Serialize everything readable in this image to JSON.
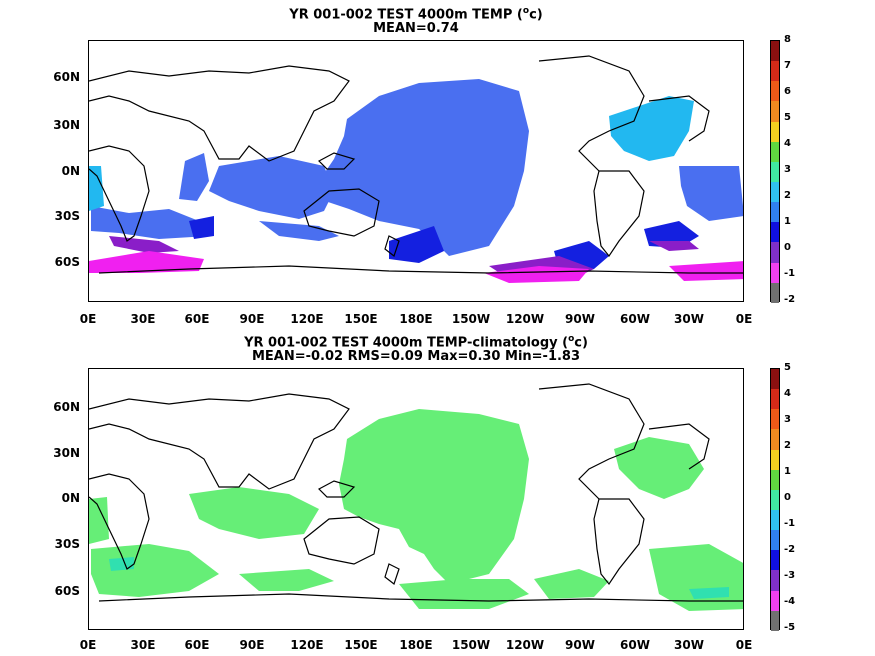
{
  "panels": [
    {
      "title_line1": "YR 001-002 TEST 4000m TEMP (",
      "title_unit_sup": "o",
      "title_unit_tail": "c)",
      "title_line2": "MEAN=0.74",
      "colorbar_labels": [
        "8",
        "7",
        "6",
        "5",
        "4",
        "3",
        "2",
        "1",
        "0",
        "-1",
        "-2"
      ],
      "colorbar_range": [
        -2,
        8
      ]
    },
    {
      "title_line1": "YR 001-002 TEST 4000m TEMP-climatology (",
      "title_unit_sup": "o",
      "title_unit_tail": "c)",
      "title_line2": "MEAN=-0.02   RMS=0.09   Max=0.30   Min=-1.83",
      "colorbar_labels": [
        "5",
        "4",
        "3",
        "2",
        "1",
        "0",
        "-1",
        "-2",
        "-3",
        "-4",
        "-5"
      ],
      "colorbar_range": [
        -5,
        5
      ]
    }
  ],
  "axes": {
    "lat_labels": [
      "60N",
      "30N",
      "0N",
      "30S",
      "60S"
    ],
    "lon_labels": [
      "0E",
      "30E",
      "60E",
      "90E",
      "120E",
      "150E",
      "180E",
      "150W",
      "120W",
      "90W",
      "60W",
      "30W",
      "0E"
    ]
  },
  "colors": {
    "colorbar": [
      "#8b1010",
      "#d42a18",
      "#ee5a18",
      "#f08a20",
      "#f4d020",
      "#60d840",
      "#40e8a0",
      "#30c0f0",
      "#3080f0",
      "#1010e0",
      "#8030c8",
      "#f040f0",
      "#707070"
    ],
    "field_blue": "#4a6ff0",
    "field_lightblue": "#22b8f0",
    "field_darkblue": "#1420e0",
    "field_purple": "#8a1ec8",
    "field_magenta": "#f020f0",
    "field_green": "#66ee77",
    "field_teal": "#30e0b0"
  }
}
